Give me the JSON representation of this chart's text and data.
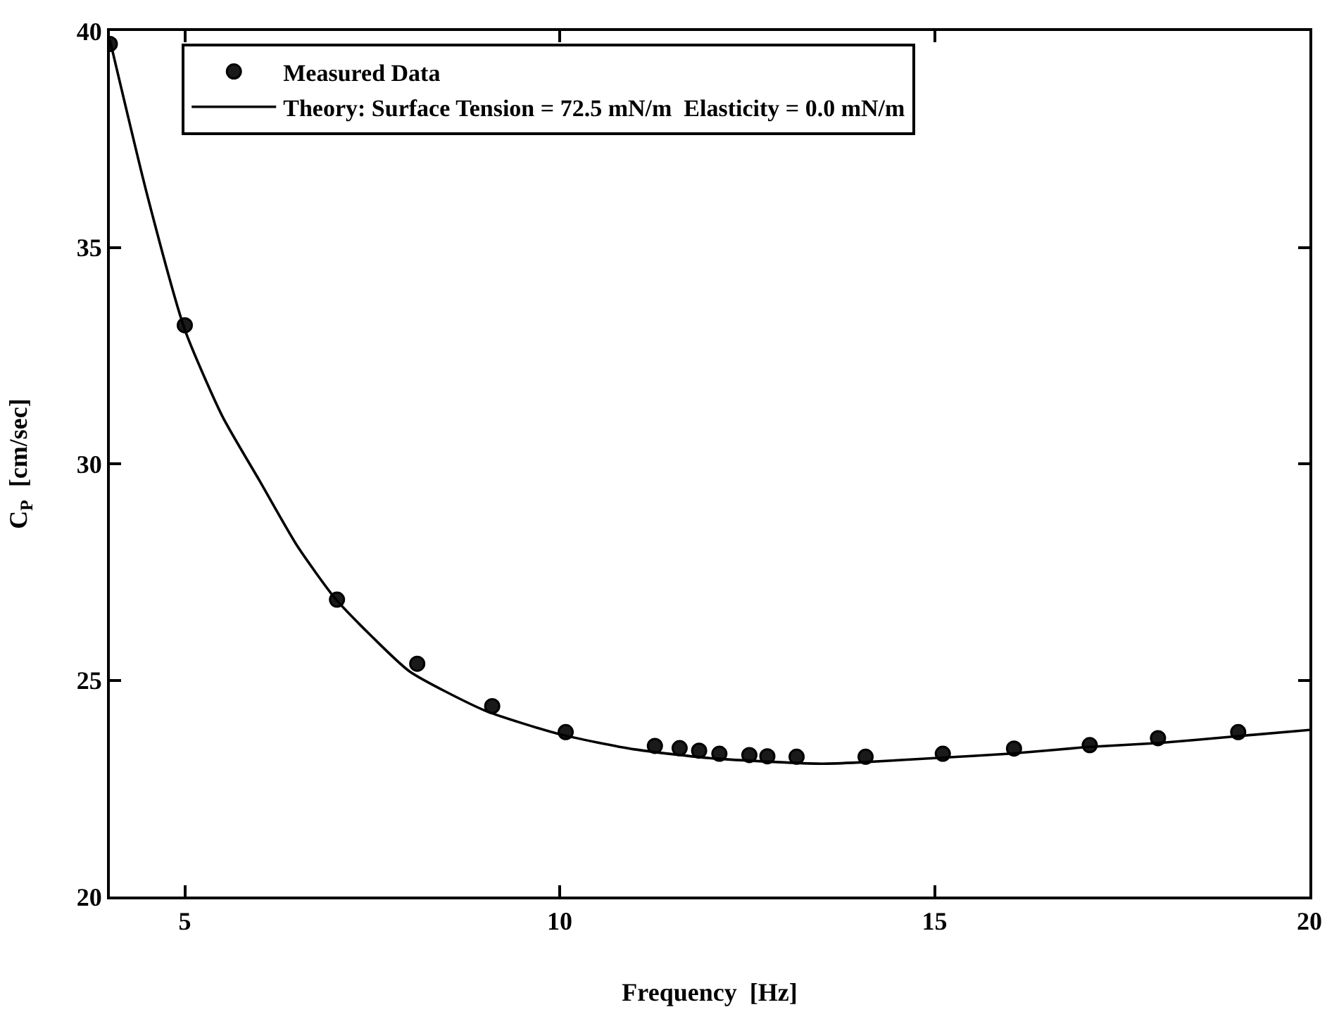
{
  "chart_data": {
    "type": "scatter",
    "xlabel": "Frequency  [Hz]",
    "ylabel": "C$_{P}$  [cm/sec]",
    "xlim": [
      4,
      20
    ],
    "xticks": [
      5,
      10,
      15,
      20
    ],
    "ylim": [
      20,
      40
    ],
    "yticks": [
      20,
      25,
      30,
      35,
      40
    ],
    "legend": "top left",
    "series": [
      {
        "name": "Measured Data",
        "marker": "circle",
        "color": "#1a1a1a",
        "x": [
          4.0,
          5.0,
          7.03,
          8.1,
          9.1,
          10.08,
          11.27,
          11.6,
          11.86,
          12.13,
          12.53,
          12.77,
          13.16,
          14.08,
          15.11,
          16.06,
          17.07,
          17.98,
          19.05
        ],
        "values": [
          39.7,
          33.2,
          26.86,
          25.38,
          24.4,
          23.8,
          23.48,
          23.43,
          23.37,
          23.3,
          23.27,
          23.24,
          23.23,
          23.23,
          23.3,
          23.42,
          23.5,
          23.66,
          23.8
        ]
      },
      {
        "name": "Theory: Surface Tension = 72.5 mN/m  Elasticity = 0.0 mN/m",
        "type": "line",
        "marker": "none",
        "line_style": "solid",
        "color": "#000000",
        "x": [
          4,
          4.5,
          5,
          5.5,
          6,
          6.5,
          7,
          7.5,
          8,
          9,
          10,
          11,
          12,
          13,
          13.5,
          14,
          15,
          16,
          17,
          18,
          19,
          20
        ],
        "values": [
          39.8,
          36.2,
          33.1,
          31.1,
          29.6,
          28.1,
          26.9,
          26.0,
          25.2,
          24.3,
          23.75,
          23.4,
          23.2,
          23.1,
          23.07,
          23.1,
          23.2,
          23.3,
          23.45,
          23.55,
          23.7,
          23.85
        ]
      }
    ]
  }
}
